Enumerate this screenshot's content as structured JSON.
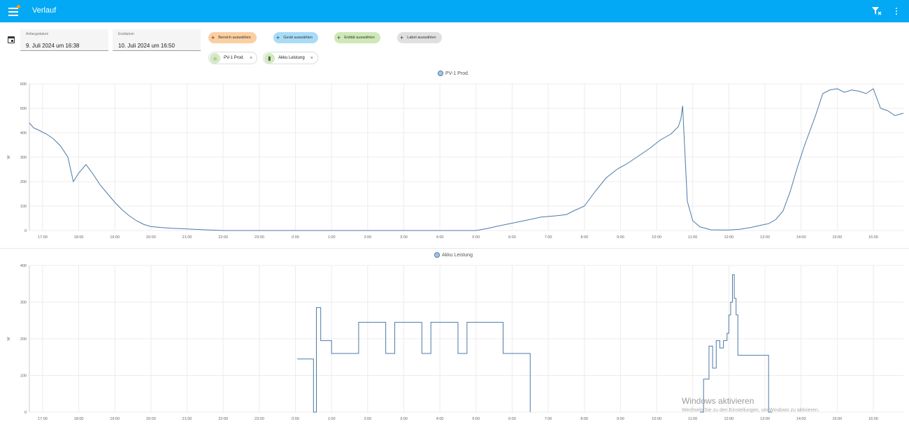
{
  "header": {
    "title": "Verlauf",
    "accent_color": "#03a9f4",
    "badge_color": "#ff9800",
    "menu_icon": "hamburger-menu-icon",
    "filter_icon": "filter-remove-icon",
    "more_icon": "dots-vertical-icon"
  },
  "date_range": {
    "icon": "calendar-range-icon",
    "start": {
      "label": "Anfangsdatum",
      "value": "9. Juli 2024 um 16:38"
    },
    "end": {
      "label": "Enddatum",
      "value": "10. Juli 2024 um 16:50"
    }
  },
  "target_chips": [
    {
      "label": "Bereich auswählen",
      "color": "#fbcfa0"
    },
    {
      "label": "Gerät auswählen",
      "color": "#a9dcf7"
    },
    {
      "label": "Entität auswählen",
      "color": "#cfe8b8"
    },
    {
      "label": "Label auswählen",
      "color": "#e0e0e0"
    }
  ],
  "selected_entities": [
    {
      "label": "PV-1 Prod.",
      "icon": "solar-power-icon"
    },
    {
      "label": "Akku Leistung",
      "icon": "battery-icon"
    }
  ],
  "chart_data": [
    {
      "type": "line",
      "title": "PV-1 Prod.",
      "ylabel": "W",
      "ylim": [
        0,
        600
      ],
      "y_ticks": [
        "0",
        "100",
        "200",
        "300",
        "400",
        "500",
        "600"
      ],
      "x_ticks": [
        "17:00",
        "18:00",
        "19:00",
        "20:00",
        "21:00",
        "22:00",
        "23:00",
        "0:00",
        "1:00",
        "2:00",
        "3:00",
        "4:00",
        "5:00",
        "6:00",
        "7:00",
        "8:00",
        "9:00",
        "10:00",
        "11:00",
        "12:00",
        "13:00",
        "14:00",
        "15:00",
        "16:00"
      ],
      "xlim_hours": [
        16.633,
        40.833
      ],
      "series": [
        {
          "name": "PV-1 Prod.",
          "color": "#4e79a7",
          "x": [
            16.633,
            16.75,
            16.9,
            17.1,
            17.3,
            17.5,
            17.7,
            17.85,
            18.0,
            18.2,
            18.4,
            18.6,
            18.8,
            19.0,
            19.2,
            19.4,
            19.6,
            19.8,
            20.0,
            20.3,
            20.6,
            20.9,
            21.2,
            21.5,
            22,
            24,
            26,
            28,
            29.0,
            29.3,
            29.6,
            30.0,
            30.4,
            30.8,
            31.2,
            31.5,
            31.7,
            32.0,
            32.3,
            32.6,
            32.9,
            33.2,
            33.5,
            33.8,
            34.1,
            34.4,
            34.6,
            34.67,
            34.72,
            34.85,
            35.0,
            35.2,
            35.5,
            35.8,
            36.0,
            36.3,
            36.6,
            36.9,
            37.1,
            37.3,
            37.5,
            37.7,
            37.9,
            38.1,
            38.4,
            38.6,
            38.8,
            39.0,
            39.2,
            39.4,
            39.6,
            39.8,
            40.0,
            40.2,
            40.4,
            40.6,
            40.833
          ],
          "y": [
            440,
            420,
            410,
            395,
            375,
            345,
            300,
            200,
            235,
            270,
            230,
            185,
            150,
            115,
            85,
            60,
            40,
            25,
            16,
            12,
            9,
            7,
            5,
            3,
            0,
            0,
            0,
            0,
            0,
            8,
            18,
            30,
            42,
            55,
            60,
            65,
            80,
            100,
            160,
            215,
            250,
            275,
            305,
            335,
            370,
            395,
            425,
            455,
            510,
            120,
            40,
            15,
            3,
            2,
            2,
            5,
            12,
            22,
            28,
            45,
            80,
            160,
            260,
            350,
            470,
            560,
            575,
            580,
            565,
            575,
            570,
            560,
            580,
            500,
            490,
            470,
            480
          ]
        }
      ]
    },
    {
      "type": "line",
      "title": "Akku Leistung",
      "ylabel": "W",
      "ylim": [
        0,
        400
      ],
      "y_ticks": [
        "0",
        "100",
        "200",
        "300",
        "400"
      ],
      "x_ticks": [
        "17:00",
        "18:00",
        "19:00",
        "20:00",
        "21:00",
        "22:00",
        "23:00",
        "0:00",
        "1:00",
        "2:00",
        "3:00",
        "4:00",
        "5:00",
        "6:00",
        "7:00",
        "8:00",
        "9:00",
        "10:00",
        "11:00",
        "12:00",
        "13:00",
        "14:00",
        "15:00",
        "16:00"
      ],
      "xlim_hours": [
        16.633,
        40.833
      ],
      "series": [
        {
          "name": "Akku Leistung",
          "color": "#4e79a7",
          "step": true,
          "x": [
            24.05,
            24.5,
            24.58,
            24.7,
            25.0,
            25.0,
            25.5,
            25.75,
            26.5,
            26.75,
            27.5,
            27.75,
            28.5,
            28.75,
            29.75,
            30.5,
            30.5
          ],
          "y": [
            145,
            0,
            285,
            195,
            195,
            160,
            160,
            245,
            160,
            245,
            160,
            245,
            160,
            245,
            160,
            0,
            0
          ],
          "late_x": [
            35.2,
            35.3,
            35.45,
            35.55,
            35.65,
            35.75,
            35.85,
            35.95,
            36.0,
            36.05,
            36.1,
            36.15,
            36.2,
            36.25,
            36.3,
            36.35,
            36.45,
            36.55,
            36.65,
            37.0,
            37.1,
            37.2
          ],
          "late_y": [
            0,
            90,
            180,
            120,
            195,
            175,
            195,
            215,
            265,
            300,
            375,
            310,
            265,
            155,
            155,
            155,
            155,
            155,
            155,
            155,
            0,
            0
          ]
        }
      ]
    }
  ],
  "watermark": {
    "line1": "Windows aktivieren",
    "line2": "Wechseln Sie zu den Einstellungen, um Windows zu aktivieren."
  }
}
